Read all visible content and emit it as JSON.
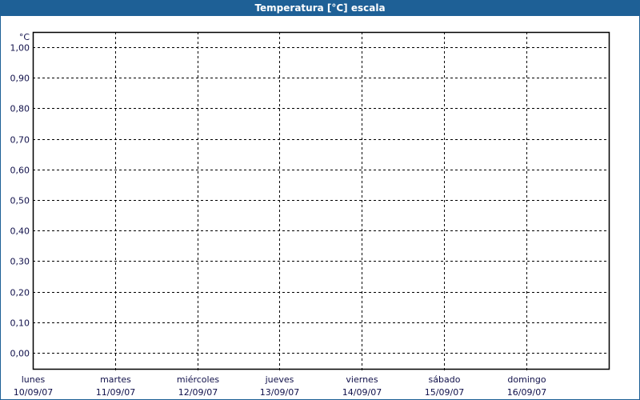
{
  "window": {
    "title": "Temperatura [°C] escala"
  },
  "colors": {
    "titlebar": "#1e6096",
    "grid": "#000000",
    "labels": "#10104a"
  },
  "chart_data": {
    "type": "line",
    "title": "Temperatura [°C] escala",
    "ylabel": "°C",
    "xlabel": "",
    "ylim": [
      0,
      1
    ],
    "y_ticks": [
      "0,00",
      "0,10",
      "0,20",
      "0,30",
      "0,40",
      "0,50",
      "0,60",
      "0,70",
      "0,80",
      "0,90",
      "1,00"
    ],
    "categories": [
      {
        "day": "lunes",
        "date": "10/09/07"
      },
      {
        "day": "martes",
        "date": "11/09/07"
      },
      {
        "day": "miércoles",
        "date": "12/09/07"
      },
      {
        "day": "jueves",
        "date": "13/09/07"
      },
      {
        "day": "viernes",
        "date": "14/09/07"
      },
      {
        "day": "sábado",
        "date": "15/09/07"
      },
      {
        "day": "domingo",
        "date": "16/09/07"
      }
    ],
    "grid": true,
    "grid_style": "dashed",
    "series": []
  }
}
